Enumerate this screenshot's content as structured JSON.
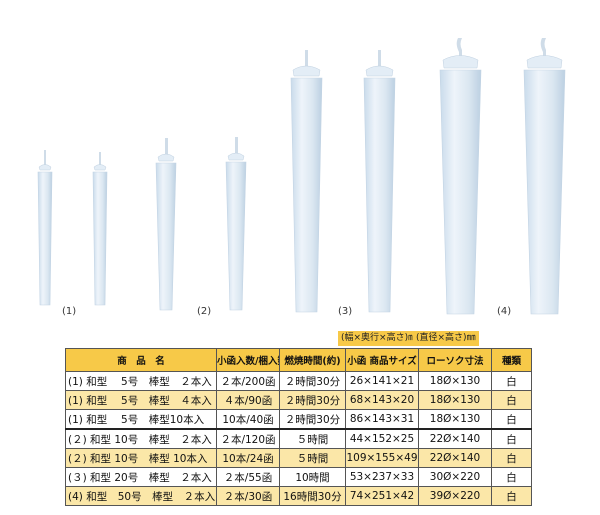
{
  "group_labels": [
    "(1)",
    "(2)",
    "(3)",
    "(4)"
  ],
  "dims_labels": {
    "size": "(幅×奥行×高さ)㎜",
    "candle": "(直径×高さ)㎜"
  },
  "table": {
    "headers": [
      "商　品　名",
      "小函入数/梱入数",
      "燃焼時間(約)",
      "小函 商品サイズ",
      "ローソク寸法",
      "種類"
    ],
    "rows": [
      [
        "(1) 和型　 5号　棒型　２本入",
        "２本/200函",
        "２時間30分",
        "26×141×21",
        "18Ø×130",
        "白"
      ],
      [
        "(1) 和型　 5号　棒型　４本入",
        "４本/90函",
        "２時間30分",
        "68×143×20",
        "18Ø×130",
        "白"
      ],
      [
        "(1) 和型　 5号　棒型10本入",
        "10本/40函",
        "２時間30分",
        "86×143×31",
        "18Ø×130",
        "白"
      ],
      [
        "(２) 和型 10号　棒型　２本入",
        "２本/120函",
        "５時間",
        "44×152×25",
        "22Ø×140",
        "白"
      ],
      [
        "(２) 和型 10号　棒型 10本入",
        "10本/24函",
        "５時間",
        "109×155×49",
        "22Ø×140",
        "白"
      ],
      [
        "(３) 和型 20号　棒型　２本入",
        "２本/55函",
        "10時間",
        "53×237×33",
        "30Ø×220",
        "白"
      ],
      [
        "(4) 和型　50号　棒型　２本入",
        "２本/30函",
        "16時間30分",
        "74×251×42",
        "39Ø×220",
        "白"
      ]
    ]
  },
  "colors": {
    "header_bg": "#f7c948",
    "alt_row_bg": "#fbe7a8",
    "candle_fill": "#dde9f3"
  }
}
